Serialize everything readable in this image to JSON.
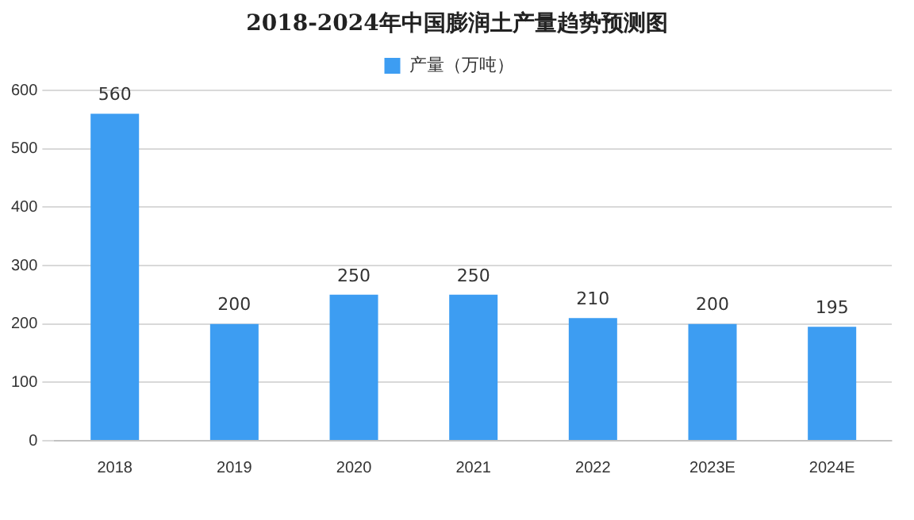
{
  "chart_data": {
    "type": "bar",
    "title": "2018-2024年中国膨润土产量趋势预测图",
    "categories": [
      "2018",
      "2019",
      "2020",
      "2021",
      "2022",
      "2023E",
      "2024E"
    ],
    "series": [
      {
        "name": "产量（万吨）",
        "color": "#3d9df2",
        "values": [
          560,
          200,
          250,
          250,
          210,
          200,
          195
        ]
      }
    ],
    "ylim": [
      0,
      600
    ],
    "yticks": [
      0,
      100,
      200,
      300,
      400,
      500,
      600
    ],
    "grid": "y",
    "legend": "top",
    "data_labels": true
  }
}
